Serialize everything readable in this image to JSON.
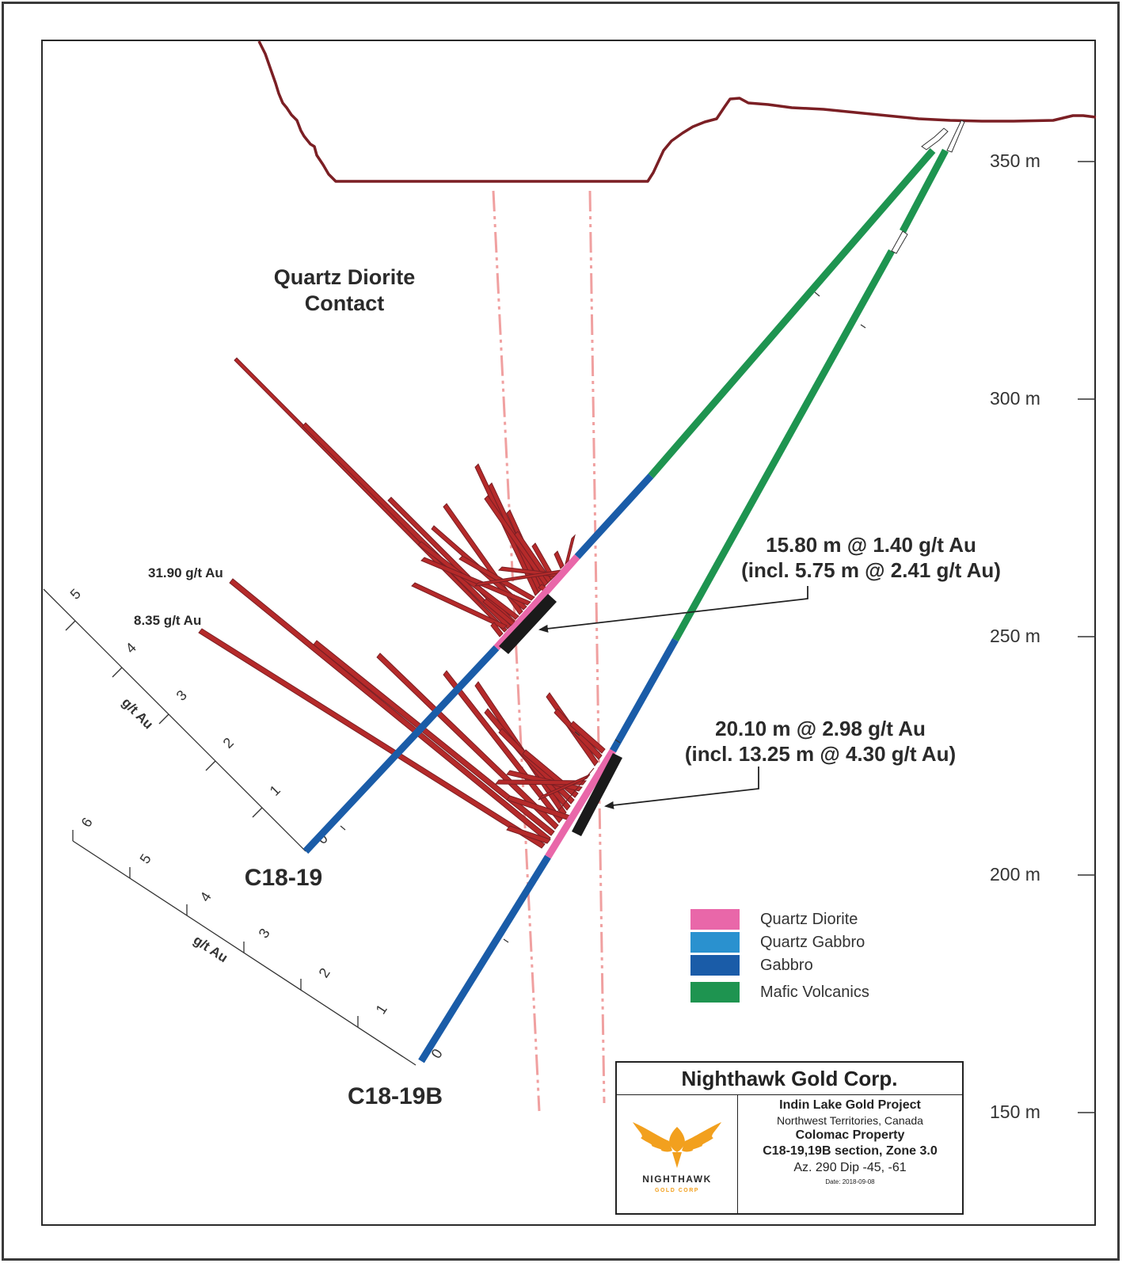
{
  "elevation_axis": {
    "ticks": [
      "350 m",
      "300 m",
      "250 m",
      "200 m",
      "150 m"
    ]
  },
  "annotations": {
    "contact_label_line1": "Quartz Diorite",
    "contact_label_line2": "Contact",
    "hole1": "C18-19",
    "hole2": "C18-19B",
    "peak1": "31.90 g/t Au",
    "peak2": "8.35 g/t Au",
    "intercept1_line1": "15.80 m @ 1.40 g/t Au",
    "intercept1_line2": "(incl. 5.75 m @ 2.41 g/t Au)",
    "intercept2_line1": "20.10 m @ 2.98 g/t Au",
    "intercept2_line2": "(incl. 13.25 m @ 4.30 g/t Au)"
  },
  "grade_scale_1": {
    "unit_label": "g/t Au",
    "ticks": [
      "0",
      "1",
      "2",
      "3",
      "4",
      "5"
    ]
  },
  "grade_scale_2": {
    "unit_label": "g/t Au",
    "ticks": [
      "0",
      "1",
      "2",
      "3",
      "4",
      "5",
      "6"
    ]
  },
  "legend": [
    {
      "label": "Quartz Diorite",
      "color": "#e967a9"
    },
    {
      "label": "Quartz Gabbro",
      "color": "#2a91cf"
    },
    {
      "label": "Gabbro",
      "color": "#1a5ca8"
    },
    {
      "label": "Mafic Volcanics",
      "color": "#1e9450"
    }
  ],
  "title_block": {
    "company": "Nighthawk Gold Corp.",
    "project": "Indin Lake Gold Project",
    "location": "Northwest Territories, Canada",
    "property": "Colomac Property",
    "section": "C18-19,19B section, Zone 3.0",
    "orientation": "Az. 290  Dip -45, -61",
    "date": "Date: 2018-09-08",
    "logo_line1": "NIGHTHAWK",
    "logo_line2": "GOLD CORP"
  },
  "colors": {
    "topography": "#7b1f24",
    "assay_bars": "#b52a2a",
    "contact_lines": "#f0a0a0",
    "intercept_bar": "#1a1a1a",
    "logo_gold": "#f2a01e"
  }
}
